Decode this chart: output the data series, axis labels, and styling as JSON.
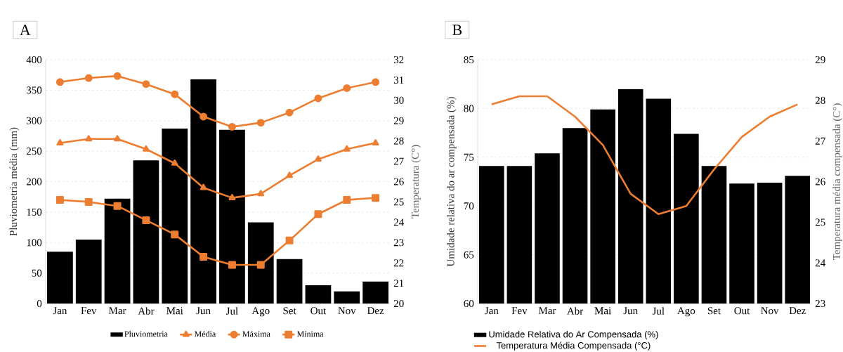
{
  "chart_data": [
    {
      "type": "bar",
      "title": "A",
      "categories": [
        "Jan",
        "Fev",
        "Mar",
        "Abr",
        "Mai",
        "Jun",
        "Jul",
        "Ago",
        "Set",
        "Out",
        "Nov",
        "Dez"
      ],
      "ylabel": "Pluviometria média (mm)",
      "y2label": "Temperatura (C°)",
      "ylim": [
        0,
        400
      ],
      "yticks": [
        0,
        50,
        100,
        150,
        200,
        250,
        300,
        350,
        400
      ],
      "y2lim": [
        20,
        32
      ],
      "y2ticks": [
        20,
        21,
        22,
        23,
        24,
        25,
        26,
        27,
        28,
        29,
        30,
        31,
        32
      ],
      "grid": "y",
      "legend": "bottom",
      "series": [
        {
          "name": "Pluviometria",
          "color": "#000000",
          "values": [
            85,
            105,
            172,
            235,
            287,
            368,
            285,
            133,
            73,
            30,
            20,
            36
          ]
        },
        {
          "name": "Média",
          "type": "line",
          "axis": "y2",
          "marker": "triangle",
          "color": "#ed7d31",
          "values": [
            27.9,
            28.1,
            28.1,
            27.6,
            26.9,
            25.7,
            25.2,
            25.4,
            26.3,
            27.1,
            27.6,
            27.9
          ]
        },
        {
          "name": "Máxima",
          "type": "line",
          "axis": "y2",
          "marker": "circle",
          "color": "#ed7d31",
          "values": [
            30.9,
            31.1,
            31.2,
            30.8,
            30.3,
            29.2,
            28.7,
            28.9,
            29.4,
            30.1,
            30.6,
            30.9
          ]
        },
        {
          "name": "Mínima",
          "type": "line",
          "axis": "y2",
          "marker": "square",
          "color": "#ed7d31",
          "values": [
            25.1,
            25.0,
            24.8,
            24.1,
            23.4,
            22.3,
            21.9,
            21.9,
            23.1,
            24.4,
            25.1,
            25.2
          ]
        }
      ]
    },
    {
      "type": "bar",
      "title": "B",
      "categories": [
        "Jan",
        "Fev",
        "Mar",
        "Abr",
        "Mai",
        "Jun",
        "Jul",
        "Ago",
        "Set",
        "Out",
        "Nov",
        "Dez"
      ],
      "ylabel": "Umidade relativa do ar compensada  (%)",
      "y2label": "Temperatura média compensada (C°)",
      "ylim": [
        60,
        85
      ],
      "yticks": [
        60,
        65,
        70,
        75,
        80,
        85
      ],
      "y2lim": [
        23,
        29
      ],
      "y2ticks": [
        23,
        24,
        25,
        26,
        27,
        28,
        29
      ],
      "grid": "y",
      "legend": "bottom",
      "series": [
        {
          "name": "Umidade Relativa do Ar Compensada (%)",
          "color": "#000000",
          "values": [
            74.1,
            74.1,
            75.4,
            78.0,
            79.9,
            82.0,
            81.0,
            77.4,
            74.1,
            72.3,
            72.4,
            73.1
          ]
        },
        {
          "name": "Temperatura Média Compensada (°C)",
          "type": "line",
          "axis": "y2",
          "marker": "none",
          "color": "#ed7d31",
          "values": [
            27.9,
            28.1,
            28.1,
            27.6,
            26.9,
            25.7,
            25.2,
            25.4,
            26.3,
            27.1,
            27.6,
            27.9
          ]
        }
      ]
    }
  ]
}
